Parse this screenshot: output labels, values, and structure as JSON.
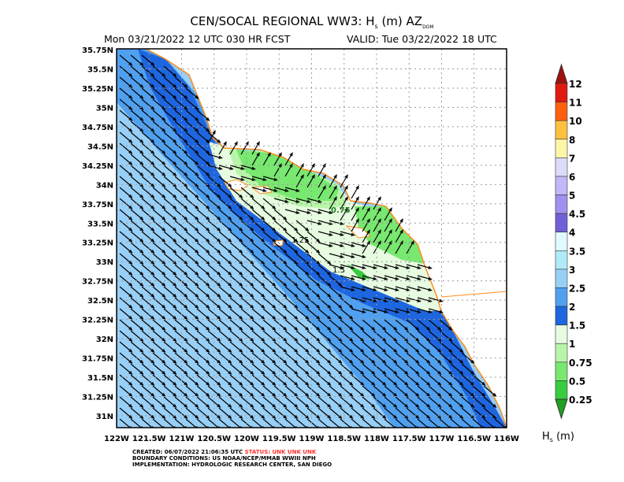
{
  "header": {
    "title": "CEN/SOCAL REGIONAL WW3: H",
    "title_sub": "s",
    "title_rest": " (m) AZ",
    "title_dom": "DOM",
    "init": "Mon 03/21/2022 12 UTC 030 HR FCST",
    "valid": "VALID: Tue 03/22/2022 18 UTC"
  },
  "map": {
    "lon_labels": [
      "122W",
      "121.5W",
      "121W",
      "120.5W",
      "120W",
      "119.5W",
      "119W",
      "118.5W",
      "118W",
      "117.5W",
      "117W",
      "116.5W",
      "116W"
    ],
    "lat_labels": [
      "35.75N",
      "35.5N",
      "35.25N",
      "35N",
      "34.75N",
      "34.5N",
      "34.25N",
      "34N",
      "33.75N",
      "33.5N",
      "33.25N",
      "33N",
      "32.75N",
      "32.5N",
      "32.25N",
      "32N",
      "31.75N",
      "31.5N",
      "31.25N",
      "31N"
    ],
    "contour_labels": [
      "0.75",
      "1.25",
      "1.5"
    ],
    "colors": {
      "land": "#ffffff",
      "offshore": "#98cff6",
      "band_mid": "#50a0f0",
      "band_dark": "#1e66e0",
      "near_shore": "#e6fbe0",
      "green_light": "#b8f5a8",
      "green_mid": "#78e870",
      "green_dark": "#38cc40",
      "coast": "#ff8c1a"
    }
  },
  "colorbar": {
    "labels": [
      "12",
      "11",
      "10",
      "8",
      "7",
      "6",
      "5",
      "4.5",
      "4",
      "3.5",
      "3",
      "2.5",
      "2",
      "1.5",
      "1",
      "0.75",
      "0.5",
      "0.25"
    ],
    "colors": [
      "#e01a10",
      "#ff6010",
      "#ffc040",
      "#fff5a8",
      "#dcdcfa",
      "#c0b8f8",
      "#a090f0",
      "#7060d8",
      "#e0faff",
      "#b0eaf8",
      "#98cff6",
      "#50a0f0",
      "#1e66e0",
      "#e6fbe0",
      "#b8f5a8",
      "#78e870",
      "#38cc40"
    ],
    "top_color": "#a01010",
    "bottom_color": "#20a020",
    "unit": "H",
    "unit_sub": "s",
    "unit_rest": " (m)"
  },
  "footer": {
    "created": "CREATED: 06/07/2022 21:06:35 UTC",
    "status": "STATUS: UNK UNK UNK",
    "boundary": "BOUNDARY CONDITIONS: US NOAA/NCEP/MMAB WWIII NPH",
    "implementation": "IMPLEMENTATION: HYDROLOGIC RESEARCH CENTER, SAN DIEGO"
  }
}
